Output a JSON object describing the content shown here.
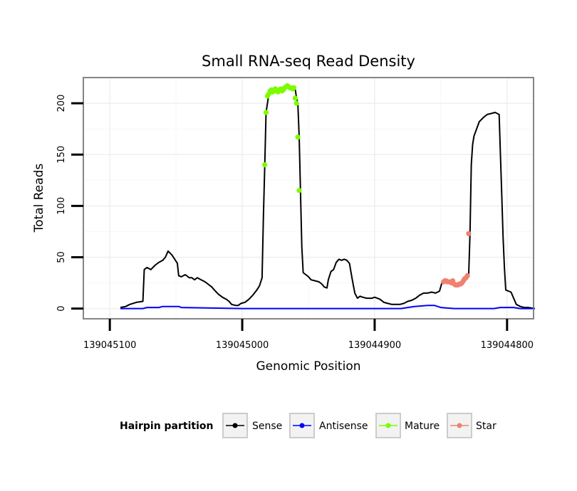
{
  "chart_data": {
    "type": "line",
    "title": "Small RNA-seq Read Density",
    "xlabel": "Genomic Position",
    "ylabel": "Total Reads",
    "xlim": [
      139045120,
      139044780
    ],
    "ylim": [
      -10,
      225
    ],
    "x_reversed": true,
    "x_ticks": [
      139045100,
      139045000,
      139044900,
      139044800
    ],
    "x_tick_labels": [
      "139045100",
      "139045000",
      "139044900",
      "139044800"
    ],
    "y_ticks": [
      0,
      50,
      100,
      150,
      200
    ],
    "y_tick_labels": [
      "0",
      "50",
      "100",
      "150",
      "200"
    ],
    "grid": true,
    "legend": {
      "title": "Hairpin partition",
      "position": "bottom",
      "entries": [
        "Sense",
        "Antisense",
        "Mature",
        "Star"
      ]
    },
    "series": [
      {
        "name": "Sense",
        "color": "#000000",
        "style": "line",
        "points": [
          [
            139045092,
            1
          ],
          [
            139045088,
            2
          ],
          [
            139045085,
            4
          ],
          [
            139045080,
            6
          ],
          [
            139045075,
            7
          ],
          [
            139045074,
            38
          ],
          [
            139045072,
            40
          ],
          [
            139045069,
            38
          ],
          [
            139045066,
            42
          ],
          [
            139045063,
            45
          ],
          [
            139045060,
            47
          ],
          [
            139045058,
            50
          ],
          [
            139045056,
            56
          ],
          [
            139045053,
            52
          ],
          [
            139045051,
            48
          ],
          [
            139045049,
            44
          ],
          [
            139045048,
            32
          ],
          [
            139045046,
            31
          ],
          [
            139045043,
            33
          ],
          [
            139045040,
            30
          ],
          [
            139045038,
            30
          ],
          [
            139045036,
            28
          ],
          [
            139045034,
            30
          ],
          [
            139045031,
            28
          ],
          [
            139045028,
            26
          ],
          [
            139045026,
            24
          ],
          [
            139045023,
            21
          ],
          [
            139045021,
            18
          ],
          [
            139045018,
            14
          ],
          [
            139045015,
            11
          ],
          [
            139045012,
            9
          ],
          [
            139045010,
            7
          ],
          [
            139045008,
            4
          ],
          [
            139045005,
            3
          ],
          [
            139045003,
            3
          ],
          [
            139045001,
            5
          ],
          [
            139044998,
            6
          ],
          [
            139044995,
            9
          ],
          [
            139044992,
            13
          ],
          [
            139044989,
            18
          ],
          [
            139044987,
            22
          ],
          [
            139044985,
            30
          ],
          [
            139044984,
            90
          ],
          [
            139044983,
            140
          ],
          [
            139044982,
            191
          ],
          [
            139044980,
            208
          ],
          [
            139044978,
            211
          ],
          [
            139044975,
            213
          ],
          [
            139044972,
            214
          ],
          [
            139044969,
            212
          ],
          [
            139044966,
            215
          ],
          [
            139044964,
            217
          ],
          [
            139044962,
            215
          ],
          [
            139044960,
            214
          ],
          [
            139044959,
            205
          ],
          [
            139044958,
            200
          ],
          [
            139044957,
            167
          ],
          [
            139044956,
            115
          ],
          [
            139044955,
            60
          ],
          [
            139044954,
            35
          ],
          [
            139044952,
            33
          ],
          [
            139044950,
            31
          ],
          [
            139044948,
            28
          ],
          [
            139044945,
            27
          ],
          [
            139044942,
            26
          ],
          [
            139044940,
            24
          ],
          [
            139044938,
            21
          ],
          [
            139044936,
            20
          ],
          [
            139044935,
            28
          ],
          [
            139044933,
            36
          ],
          [
            139044931,
            38
          ],
          [
            139044929,
            45
          ],
          [
            139044927,
            48
          ],
          [
            139044925,
            47
          ],
          [
            139044923,
            48
          ],
          [
            139044921,
            47
          ],
          [
            139044919,
            44
          ],
          [
            139044917,
            29
          ],
          [
            139044915,
            15
          ],
          [
            139044913,
            10
          ],
          [
            139044911,
            12
          ],
          [
            139044909,
            11
          ],
          [
            139044906,
            10
          ],
          [
            139044904,
            10
          ],
          [
            139044902,
            10
          ],
          [
            139044900,
            11
          ],
          [
            139044898,
            10
          ],
          [
            139044896,
            9
          ],
          [
            139044893,
            6
          ],
          [
            139044890,
            5
          ],
          [
            139044887,
            4
          ],
          [
            139044884,
            4
          ],
          [
            139044881,
            4
          ],
          [
            139044878,
            5
          ],
          [
            139044875,
            7
          ],
          [
            139044872,
            8
          ],
          [
            139044869,
            10
          ],
          [
            139044866,
            13
          ],
          [
            139044863,
            15
          ],
          [
            139044860,
            15
          ],
          [
            139044857,
            16
          ],
          [
            139044854,
            15
          ],
          [
            139044851,
            17
          ],
          [
            139044849,
            26
          ],
          [
            139044846,
            27
          ],
          [
            139044843,
            26
          ],
          [
            139044840,
            25
          ],
          [
            139044837,
            23
          ],
          [
            139044834,
            25
          ],
          [
            139044831,
            28
          ],
          [
            139044829,
            32
          ],
          [
            139044828,
            73
          ],
          [
            139044827,
            140
          ],
          [
            139044826,
            160
          ],
          [
            139044825,
            168
          ],
          [
            139044823,
            175
          ],
          [
            139044821,
            182
          ],
          [
            139044818,
            186
          ],
          [
            139044815,
            189
          ],
          [
            139044812,
            190
          ],
          [
            139044809,
            191
          ],
          [
            139044806,
            189
          ],
          [
            139044805,
            150
          ],
          [
            139044804,
            110
          ],
          [
            139044803,
            70
          ],
          [
            139044802,
            40
          ],
          [
            139044801,
            18
          ],
          [
            139044799,
            17
          ],
          [
            139044797,
            16
          ],
          [
            139044795,
            10
          ],
          [
            139044793,
            4
          ],
          [
            139044790,
            2
          ],
          [
            139044787,
            1
          ],
          [
            139044784,
            1
          ],
          [
            139044779,
            0
          ]
        ]
      },
      {
        "name": "Antisense",
        "color": "#0000ff",
        "style": "line",
        "points": [
          [
            139045092,
            0
          ],
          [
            139045075,
            0
          ],
          [
            139045072,
            1
          ],
          [
            139045063,
            1
          ],
          [
            139045060,
            2
          ],
          [
            139045048,
            2
          ],
          [
            139045046,
            1
          ],
          [
            139045000,
            0
          ],
          [
            139044880,
            0
          ],
          [
            139044875,
            1
          ],
          [
            139044870,
            2
          ],
          [
            139044860,
            3
          ],
          [
            139044855,
            3
          ],
          [
            139044850,
            1
          ],
          [
            139044840,
            0
          ],
          [
            139044810,
            0
          ],
          [
            139044805,
            1
          ],
          [
            139044795,
            1
          ],
          [
            139044790,
            0
          ],
          [
            139044779,
            0
          ]
        ]
      },
      {
        "name": "Mature",
        "color": "#7cfc00",
        "style": "points",
        "points": [
          [
            139044983,
            140
          ],
          [
            139044982,
            191
          ],
          [
            139044981,
            207
          ],
          [
            139044980,
            209
          ],
          [
            139044979,
            212
          ],
          [
            139044978,
            213
          ],
          [
            139044977,
            211
          ],
          [
            139044976,
            213
          ],
          [
            139044975,
            214
          ],
          [
            139044974,
            212
          ],
          [
            139044973,
            211
          ],
          [
            139044972,
            213
          ],
          [
            139044971,
            214
          ],
          [
            139044970,
            212
          ],
          [
            139044969,
            213
          ],
          [
            139044968,
            215
          ],
          [
            139044967,
            216
          ],
          [
            139044966,
            217
          ],
          [
            139044965,
            216
          ],
          [
            139044964,
            215
          ],
          [
            139044963,
            215
          ],
          [
            139044962,
            214
          ],
          [
            139044961,
            215
          ],
          [
            139044960,
            205
          ],
          [
            139044959,
            200
          ],
          [
            139044958,
            167
          ],
          [
            139044957,
            115
          ]
        ]
      },
      {
        "name": "Star",
        "color": "#f08070",
        "style": "points",
        "points": [
          [
            139044848,
            26
          ],
          [
            139044847,
            27
          ],
          [
            139044846,
            27
          ],
          [
            139044845,
            26
          ],
          [
            139044844,
            26
          ],
          [
            139044843,
            26
          ],
          [
            139044842,
            25
          ],
          [
            139044841,
            27
          ],
          [
            139044840,
            24
          ],
          [
            139044839,
            23
          ],
          [
            139044838,
            23
          ],
          [
            139044837,
            23
          ],
          [
            139044836,
            24
          ],
          [
            139044835,
            24
          ],
          [
            139044834,
            25
          ],
          [
            139044833,
            27
          ],
          [
            139044832,
            29
          ],
          [
            139044831,
            30
          ],
          [
            139044830,
            32
          ],
          [
            139044829,
            73
          ]
        ]
      }
    ]
  }
}
